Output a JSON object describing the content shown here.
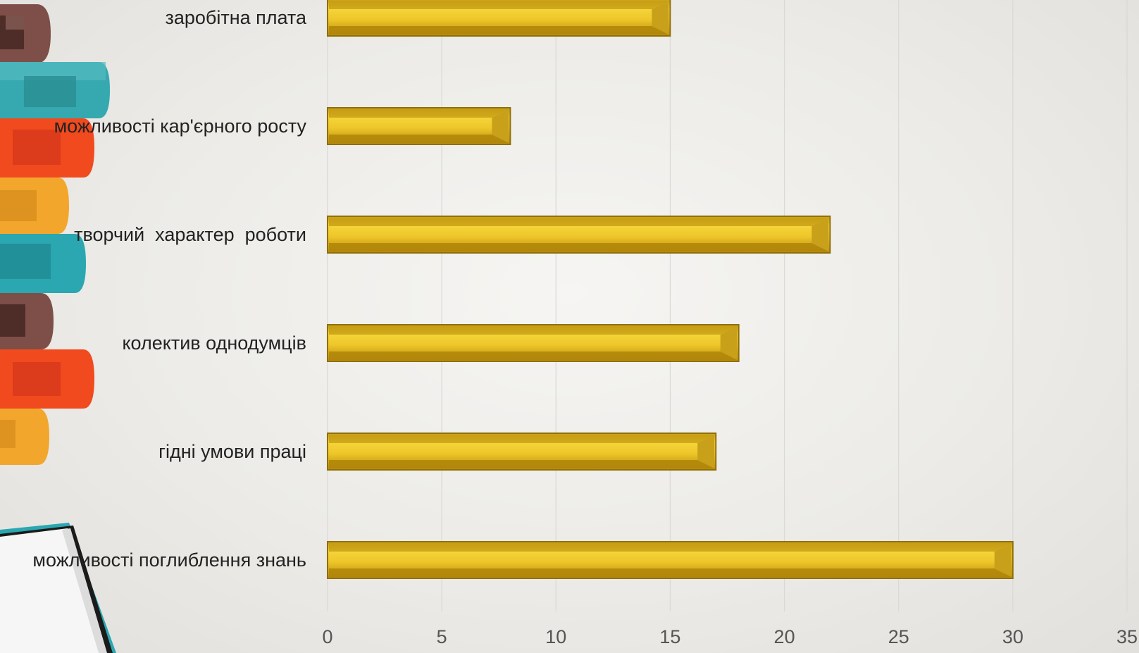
{
  "chart_data": {
    "type": "bar",
    "orientation": "horizontal",
    "categories": [
      "заробітна плата",
      "можливості кар'єрного росту",
      "творчий  характер  роботи",
      "колектив однодумців",
      "гідні умови праці",
      "можливості поглиблення знань"
    ],
    "values": [
      15,
      8,
      22,
      18,
      17,
      30
    ],
    "xlim": [
      0,
      35
    ],
    "xticks": [
      "0",
      "5",
      "10",
      "15",
      "20",
      "25",
      "30",
      "35"
    ],
    "grid": true,
    "title": "",
    "xlabel": "",
    "ylabel": "",
    "bar_color": "#dcb21c",
    "bar_edge_color": "#8f6f08"
  }
}
